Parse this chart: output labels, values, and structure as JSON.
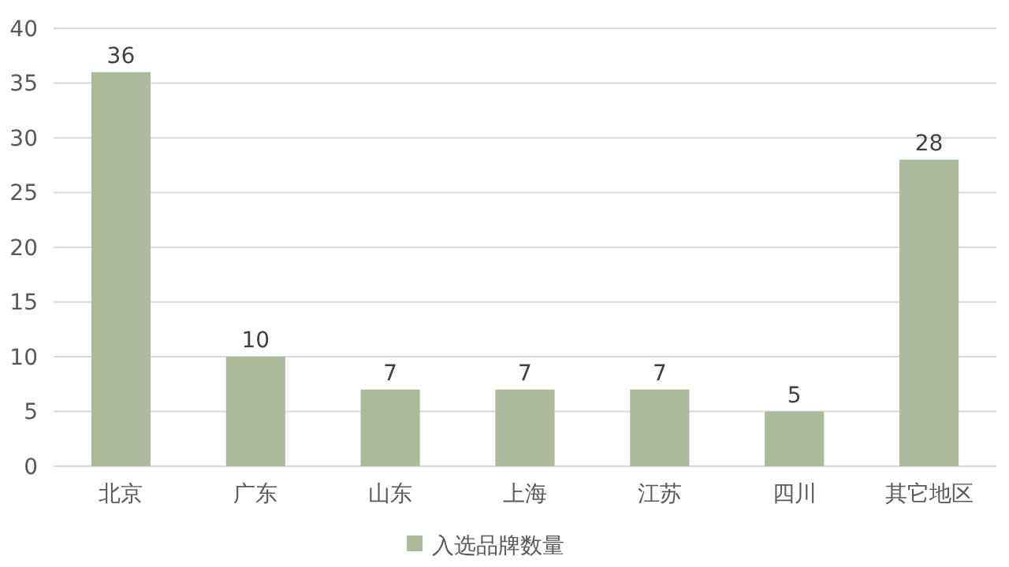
{
  "chart_data": {
    "type": "bar",
    "categories": [
      "北京",
      "广东",
      "山东",
      "上海",
      "江苏",
      "四川",
      "其它地区"
    ],
    "series": [
      {
        "name": "入选品牌数量",
        "color": "#acb99b",
        "values": [
          36,
          10,
          7,
          7,
          7,
          5,
          28
        ]
      }
    ],
    "ylim": [
      0,
      40
    ],
    "yticks": [
      0,
      5,
      10,
      15,
      20,
      25,
      30,
      35,
      40
    ],
    "grid": "y",
    "data_labels": true,
    "legend": "bottom"
  }
}
